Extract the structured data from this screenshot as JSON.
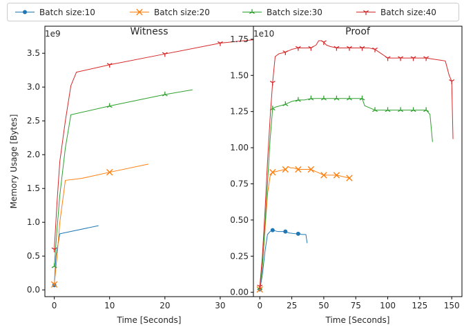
{
  "legend": {
    "placement": "top-center",
    "entries": [
      {
        "label": "Batch size:10",
        "color": "#1f77b4",
        "marker": "dot"
      },
      {
        "label": "Batch size:20",
        "color": "#ff7f0e",
        "marker": "x"
      },
      {
        "label": "Batch size:30",
        "color": "#2ca02c",
        "marker": "tri-up"
      },
      {
        "label": "Batch size:40",
        "color": "#d62728",
        "marker": "tri-down"
      }
    ]
  },
  "shared_ylabel": "Memory Usage [Bytes]",
  "chart_data": [
    {
      "type": "line",
      "title": "Witness",
      "xlabel": "Time [Seconds]",
      "ylabel": "Memory Usage [Bytes]",
      "offset_text": "1e9",
      "xlim": [
        -1.7,
        36
      ],
      "ylim": [
        -0.1,
        3.9
      ],
      "xticks": [
        0,
        10,
        20,
        30
      ],
      "xtick_labels": [
        "0",
        "10",
        "20",
        "30"
      ],
      "yticks": [
        0.0,
        0.5,
        1.0,
        1.5,
        2.0,
        2.5,
        3.0,
        3.5
      ],
      "ytick_labels": [
        "0.0",
        "0.5",
        "1.0",
        "1.5",
        "2.0",
        "2.5",
        "3.0",
        "3.5"
      ],
      "grid": false,
      "series": [
        {
          "name": "Batch size:10",
          "x": [
            0,
            0.3,
            1,
            8
          ],
          "y": [
            0.07,
            0.5,
            0.83,
            0.95
          ],
          "markers_at": [
            0
          ]
        },
        {
          "name": "Batch size:20",
          "x": [
            0,
            0.5,
            1,
            2,
            5,
            10,
            17
          ],
          "y": [
            0.08,
            0.5,
            1.0,
            1.62,
            1.65,
            1.74,
            1.86
          ],
          "markers_at": [
            0,
            10
          ]
        },
        {
          "name": "Batch size:30",
          "x": [
            0,
            0.5,
            1,
            2,
            3,
            10,
            20,
            25
          ],
          "y": [
            0.35,
            0.9,
            1.4,
            2.1,
            2.59,
            2.72,
            2.89,
            2.96
          ],
          "markers_at": [
            0,
            10,
            20
          ]
        },
        {
          "name": "Batch size:40",
          "x": [
            0,
            0.5,
            1,
            2,
            3,
            4,
            10,
            20,
            30,
            36
          ],
          "y": [
            0.6,
            1.3,
            1.9,
            2.5,
            3.02,
            3.22,
            3.33,
            3.49,
            3.65,
            3.7
          ],
          "markers_at": [
            0,
            10,
            20,
            30
          ]
        }
      ]
    },
    {
      "type": "line",
      "title": "Proof",
      "xlabel": "Time [Seconds]",
      "ylabel": "",
      "offset_text": "1e10",
      "xlim": [
        -5,
        158
      ],
      "ylim": [
        -0.03,
        1.84
      ],
      "xticks": [
        0,
        25,
        50,
        75,
        100,
        125,
        150
      ],
      "xtick_labels": [
        "0",
        "25",
        "50",
        "75",
        "100",
        "125",
        "150"
      ],
      "yticks": [
        0.0,
        0.25,
        0.5,
        0.75,
        1.0,
        1.25,
        1.5,
        1.75
      ],
      "ytick_labels": [
        "0.00",
        "0.25",
        "0.50",
        "0.75",
        "1.00",
        "1.25",
        "1.50",
        "1.75"
      ],
      "grid": false,
      "series": [
        {
          "name": "Batch size:10",
          "x": [
            0,
            2,
            4,
            6,
            8,
            10,
            14,
            20,
            23,
            28,
            30,
            33,
            36,
            37
          ],
          "y": [
            0.02,
            0.12,
            0.28,
            0.4,
            0.42,
            0.43,
            0.42,
            0.42,
            0.41,
            0.405,
            0.405,
            0.4,
            0.4,
            0.34
          ],
          "markers_at": [
            0,
            10,
            20,
            30
          ]
        },
        {
          "name": "Batch size:20",
          "x": [
            0,
            2,
            4,
            6,
            8,
            10,
            15,
            20,
            22,
            24,
            26,
            30,
            35,
            40,
            45,
            50,
            55,
            60,
            65,
            70
          ],
          "y": [
            0.02,
            0.18,
            0.42,
            0.68,
            0.8,
            0.83,
            0.84,
            0.85,
            0.87,
            0.86,
            0.86,
            0.85,
            0.85,
            0.85,
            0.83,
            0.81,
            0.81,
            0.81,
            0.8,
            0.79
          ],
          "markers_at": [
            0,
            10,
            20,
            30,
            40,
            50,
            60,
            70
          ]
        },
        {
          "name": "Batch size:30",
          "x": [
            0,
            2,
            4,
            6,
            8,
            10,
            12,
            20,
            25,
            30,
            35,
            40,
            50,
            60,
            70,
            80,
            82,
            90,
            100,
            110,
            120,
            130,
            133,
            135
          ],
          "y": [
            0.03,
            0.18,
            0.45,
            0.75,
            1.05,
            1.27,
            1.28,
            1.3,
            1.32,
            1.33,
            1.33,
            1.34,
            1.34,
            1.34,
            1.34,
            1.34,
            1.29,
            1.26,
            1.26,
            1.26,
            1.26,
            1.26,
            1.23,
            1.04
          ],
          "markers_at": [
            0,
            10,
            20,
            30,
            40,
            50,
            60,
            70,
            80,
            90,
            100,
            110,
            120,
            130
          ]
        },
        {
          "name": "Batch size:40",
          "x": [
            0,
            2,
            4,
            6,
            8,
            10,
            12,
            15,
            20,
            25,
            30,
            35,
            40,
            44,
            46,
            48,
            50,
            52,
            55,
            60,
            70,
            80,
            85,
            90,
            95,
            100,
            110,
            120,
            130,
            145,
            148,
            150,
            151
          ],
          "y": [
            0.04,
            0.25,
            0.55,
            0.9,
            1.2,
            1.45,
            1.63,
            1.65,
            1.66,
            1.68,
            1.69,
            1.69,
            1.69,
            1.71,
            1.74,
            1.74,
            1.73,
            1.71,
            1.7,
            1.69,
            1.69,
            1.69,
            1.69,
            1.68,
            1.65,
            1.62,
            1.62,
            1.62,
            1.62,
            1.6,
            1.5,
            1.46,
            1.06
          ],
          "markers_at": [
            0,
            10,
            20,
            30,
            40,
            50,
            60,
            70,
            80,
            90,
            100,
            110,
            120,
            130,
            150
          ]
        }
      ]
    }
  ]
}
